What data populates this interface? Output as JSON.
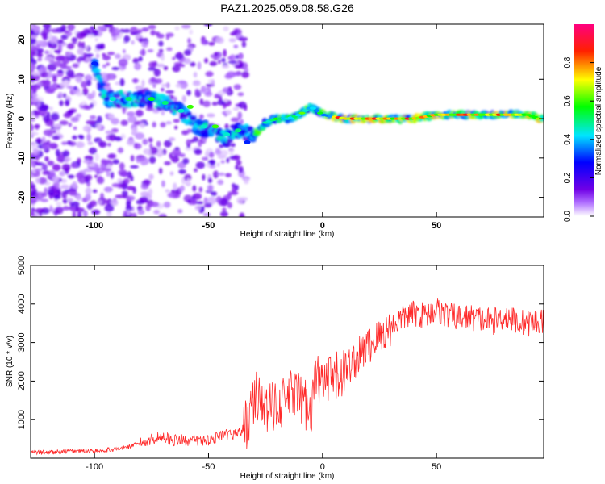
{
  "figure_title": "PAZ1.2025.059.08.58.G26",
  "chart_data": [
    {
      "type": "heatmap",
      "xlabel": "Height of straight line (km)",
      "ylabel": "Frequency (Hz)",
      "xlim": [
        -128,
        97
      ],
      "ylim": [
        -25,
        24
      ],
      "xticks": [
        -100,
        -50,
        0,
        50
      ],
      "yticks": [
        -20,
        -10,
        0,
        10,
        20
      ],
      "colorbar": {
        "label": "Normalized spectral amplitude",
        "range": [
          0.0,
          1.0
        ],
        "ticks": [
          0.0,
          0.2,
          0.4,
          0.6,
          0.8
        ],
        "colormap": [
          "#ffffff",
          "#7a00e6",
          "#0000ff",
          "#00ffff",
          "#00ff00",
          "#ffff00",
          "#ff0000",
          "#ff0080"
        ]
      },
      "ridge": [
        [
          -100,
          14
        ],
        [
          -95,
          5
        ],
        [
          -85,
          5
        ],
        [
          -75,
          5
        ],
        [
          -70,
          4
        ],
        [
          -62,
          2
        ],
        [
          -55,
          -2
        ],
        [
          -48,
          -3
        ],
        [
          -42,
          -5
        ],
        [
          -37,
          -3
        ],
        [
          -30,
          -4
        ],
        [
          -25,
          -1
        ],
        [
          -20,
          0
        ],
        [
          -15,
          0
        ],
        [
          -10,
          1
        ],
        [
          -5,
          3
        ],
        [
          0,
          1
        ],
        [
          10,
          0
        ],
        [
          20,
          0
        ],
        [
          30,
          0
        ],
        [
          40,
          0
        ],
        [
          50,
          1
        ],
        [
          60,
          1
        ],
        [
          70,
          1
        ],
        [
          80,
          1
        ],
        [
          90,
          1
        ],
        [
          95,
          0
        ]
      ]
    },
    {
      "type": "line",
      "xlabel": "Height of straight line (km)",
      "ylabel": "SNR (10 * v/v)",
      "xlim": [
        -128,
        97
      ],
      "ylim": [
        0,
        5000
      ],
      "xticks": [
        -100,
        -50,
        0,
        50
      ],
      "yticks": [
        1000,
        2000,
        3000,
        4000,
        5000
      ],
      "color": "#ff2a2a",
      "series": [
        {
          "x": [
            -128,
            -120,
            -110,
            -100,
            -90,
            -85,
            -80,
            -75,
            -70,
            -65,
            -60,
            -55,
            -50,
            -45,
            -40,
            -35,
            -32,
            -30,
            -27,
            -25,
            -22,
            -20,
            -17,
            -15,
            -12,
            -10,
            -7,
            -5,
            -3,
            0,
            5,
            10,
            15,
            20,
            25,
            30,
            35,
            40,
            45,
            50,
            55,
            60,
            65,
            70,
            75,
            80,
            85,
            90,
            95,
            97
          ],
          "values": [
            150,
            150,
            180,
            200,
            230,
            300,
            380,
            500,
            560,
            460,
            470,
            450,
            480,
            560,
            620,
            700,
            1100,
            1500,
            1700,
            1200,
            1300,
            1550,
            1400,
            1600,
            1650,
            1500,
            1400,
            1300,
            2100,
            1900,
            2000,
            2300,
            2600,
            2900,
            3150,
            3400,
            3650,
            3750,
            3700,
            3850,
            3700,
            3650,
            3650,
            3600,
            3550,
            3700,
            3550,
            3500,
            3550,
            3600
          ]
        }
      ]
    }
  ]
}
